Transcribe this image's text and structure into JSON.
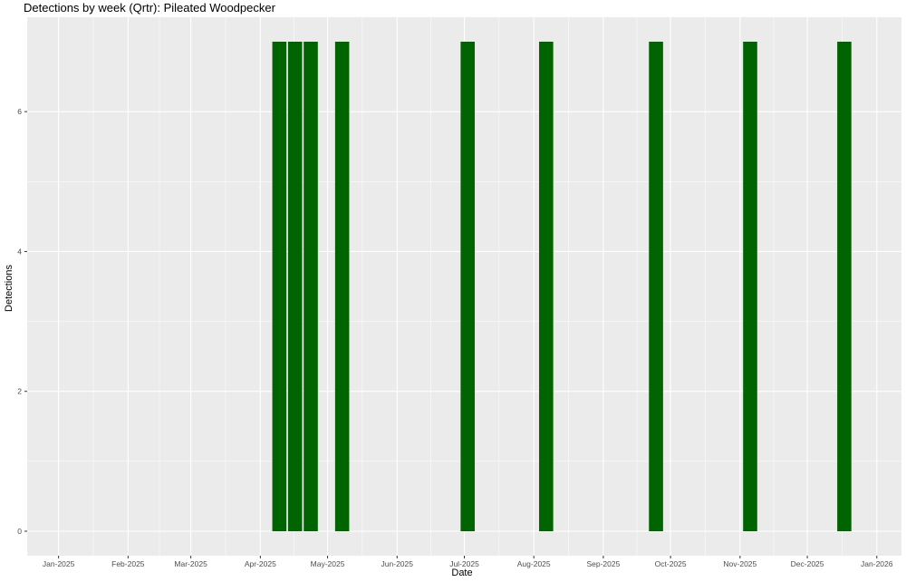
{
  "chart_data": {
    "type": "bar",
    "title": "Detections by week (Qrtr): Pileated Woodpecker",
    "xlabel": "Date",
    "ylabel": "Detections",
    "x_range": [
      "2024-12-18",
      "2026-01-12"
    ],
    "ylim": [
      -0.35,
      7.35
    ],
    "y_ticks": [
      0,
      2,
      4,
      6
    ],
    "x_ticks": [
      {
        "date": "2025-01-01",
        "label": "Jan-2025"
      },
      {
        "date": "2025-02-01",
        "label": "Feb-2025"
      },
      {
        "date": "2025-03-01",
        "label": "Mar-2025"
      },
      {
        "date": "2025-04-01",
        "label": "Apr-2025"
      },
      {
        "date": "2025-05-01",
        "label": "May-2025"
      },
      {
        "date": "2025-06-01",
        "label": "Jun-2025"
      },
      {
        "date": "2025-07-01",
        "label": "Jul-2025"
      },
      {
        "date": "2025-08-01",
        "label": "Aug-2025"
      },
      {
        "date": "2025-09-01",
        "label": "Sep-2025"
      },
      {
        "date": "2025-10-01",
        "label": "Oct-2025"
      },
      {
        "date": "2025-11-01",
        "label": "Nov-2025"
      },
      {
        "date": "2025-12-01",
        "label": "Dec-2025"
      },
      {
        "date": "2026-01-01",
        "label": "Jan-2026"
      }
    ],
    "bars": [
      {
        "week_start": "2025-04-06",
        "value": 7
      },
      {
        "week_start": "2025-04-13",
        "value": 7
      },
      {
        "week_start": "2025-04-20",
        "value": 7
      },
      {
        "week_start": "2025-05-04",
        "value": 7
      },
      {
        "week_start": "2025-06-29",
        "value": 7
      },
      {
        "week_start": "2025-08-03",
        "value": 7
      },
      {
        "week_start": "2025-09-21",
        "value": 7
      },
      {
        "week_start": "2025-11-02",
        "value": 7
      },
      {
        "week_start": "2025-12-14",
        "value": 7
      }
    ],
    "bar_color": "#006400",
    "panel_background": "#ebebeb",
    "grid_color": "#ffffff",
    "grid": true,
    "legend": "none"
  }
}
